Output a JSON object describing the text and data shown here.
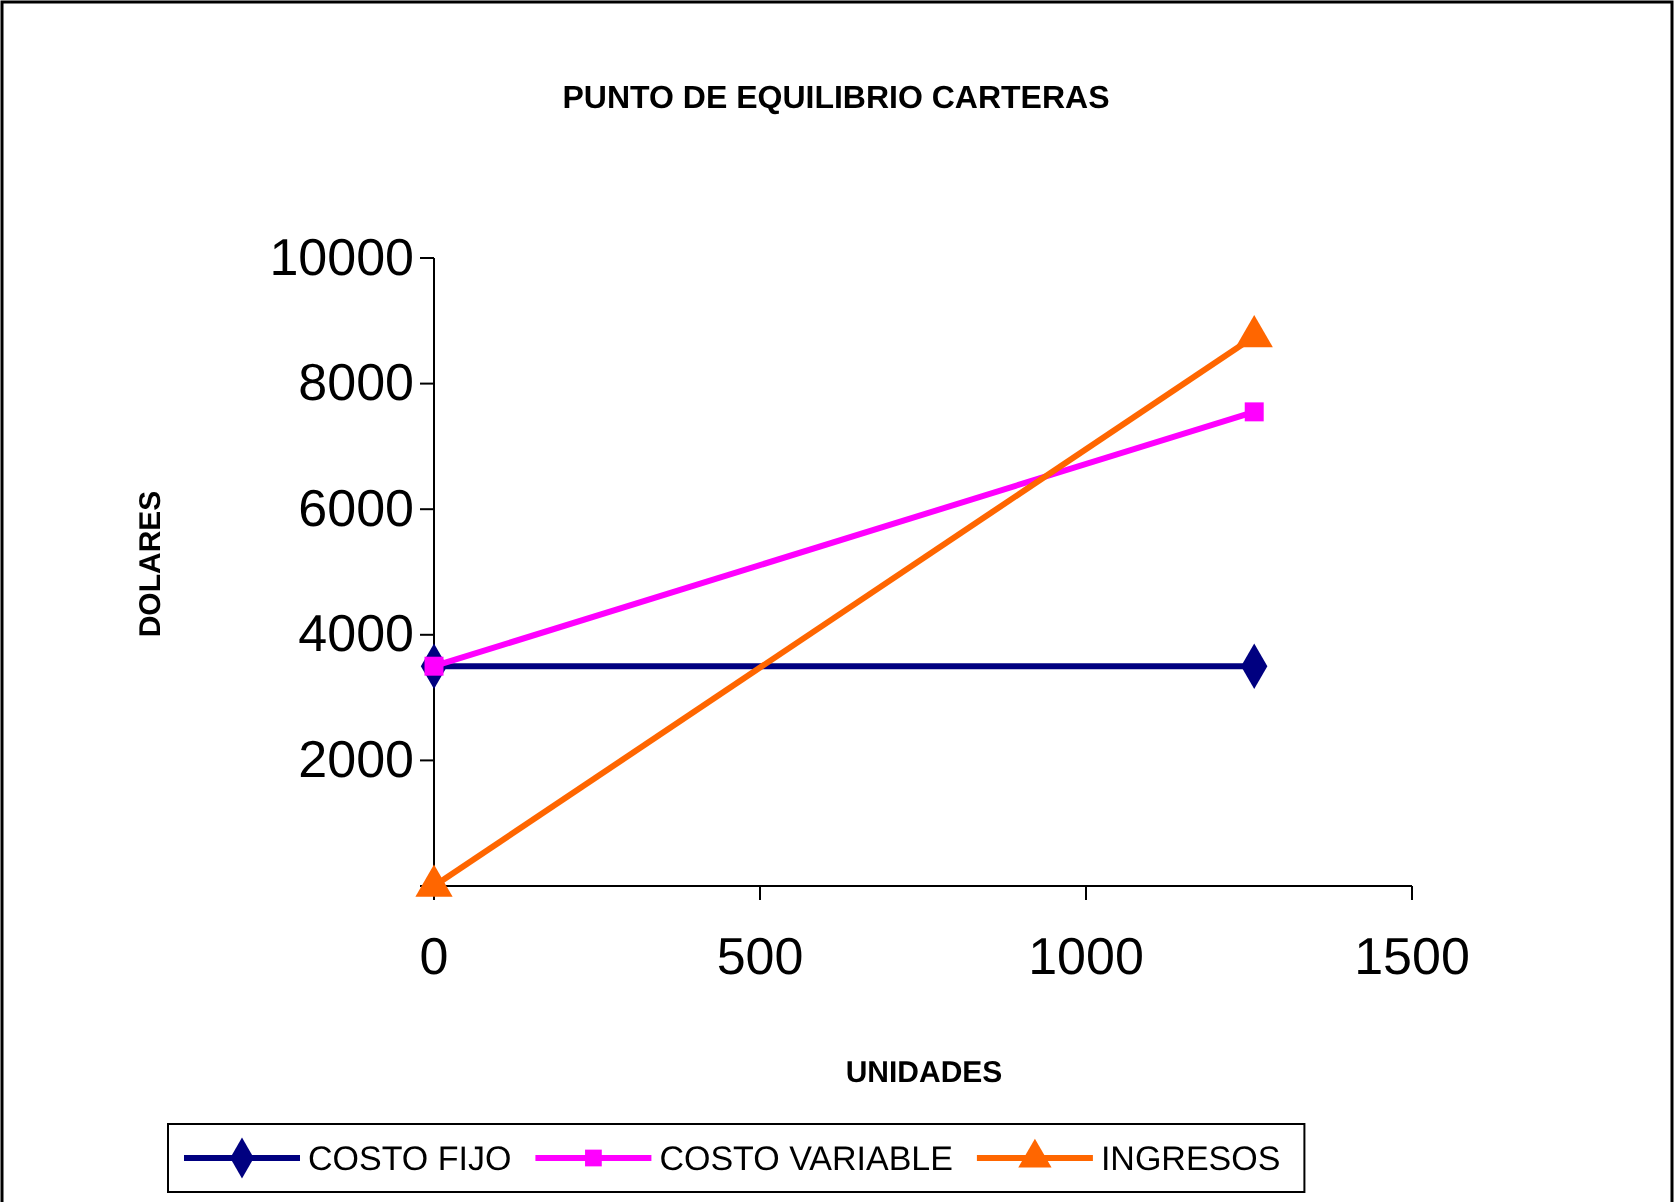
{
  "chart_data": {
    "type": "line",
    "title": "PUNTO DE EQUILIBRIO CARTERAS",
    "xlabel": "UNIDADES",
    "ylabel": "DOLARES",
    "xlim": [
      0,
      1500
    ],
    "xticks": [
      0,
      500,
      1000,
      1500
    ],
    "ylim": [
      0,
      10000
    ],
    "yticks": [
      {
        "value": 0,
        "label": null
      },
      2000,
      4000,
      6000,
      8000,
      10000
    ],
    "grid": false,
    "legend": "bottom",
    "x": [
      0,
      1258
    ],
    "series": [
      {
        "name": "COSTO FIJO",
        "color": "#000080",
        "marker": "diamond",
        "values": [
          3500,
          3500
        ]
      },
      {
        "name": "COSTO VARIABLE",
        "color": "#ff00ff",
        "marker": "square",
        "values": [
          3500,
          7550
        ]
      },
      {
        "name": "INGRESOS",
        "color": "#ff6600",
        "marker": "triangle",
        "values": [
          0,
          8750
        ]
      }
    ]
  }
}
